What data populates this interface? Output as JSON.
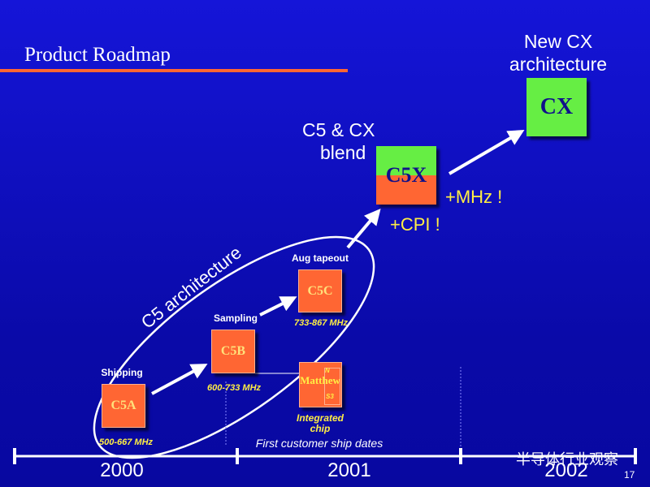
{
  "header": {
    "title": "Product Roadmap"
  },
  "cx": {
    "heading": [
      "New CX",
      "architecture"
    ],
    "label": "CX"
  },
  "c5x": {
    "heading": [
      "C5 & CX",
      "blend"
    ],
    "label": "C5X",
    "notes": [
      "+MHz !",
      "+CPI !"
    ]
  },
  "arch_label": "C5 architecture",
  "chips": [
    {
      "stage": "Shipping",
      "label": "C5A",
      "speed": "500-667 MHz"
    },
    {
      "stage": "Sampling",
      "label": "C5B",
      "speed": "600-733 MHz"
    },
    {
      "stage": "Aug tapeout",
      "label": "C5C",
      "speed": "733-867 MHz"
    }
  ],
  "integrated": {
    "label": "Matthew",
    "corner_top": "N",
    "corner_bottom": "S3",
    "caption": [
      "Integrated",
      "chip"
    ]
  },
  "timeline": {
    "caption": "First customer ship dates",
    "years": [
      "2000",
      "2001",
      "2002"
    ]
  },
  "watermark": "半导体行业观察",
  "page_number": "17"
}
